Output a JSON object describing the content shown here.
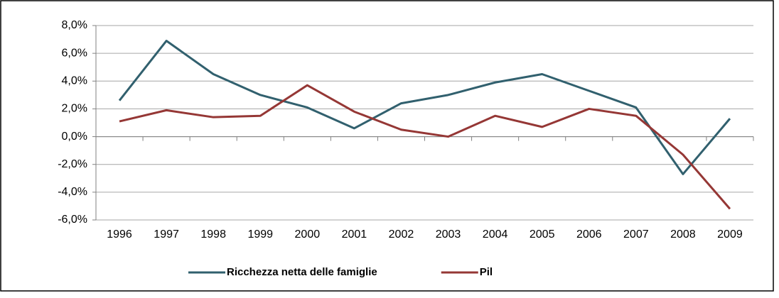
{
  "chart_data": {
    "type": "line",
    "categories": [
      "1996",
      "1997",
      "1998",
      "1999",
      "2000",
      "2001",
      "2002",
      "2003",
      "2004",
      "2005",
      "2006",
      "2007",
      "2008",
      "2009"
    ],
    "series": [
      {
        "name": "Ricchezza netta delle famiglie",
        "color": "#31606e",
        "values": [
          2.6,
          6.9,
          4.5,
          3.0,
          2.1,
          0.6,
          2.4,
          3.0,
          3.9,
          4.5,
          3.3,
          2.1,
          -2.7,
          1.3
        ]
      },
      {
        "name": "Pil",
        "color": "#953735",
        "values": [
          1.1,
          1.9,
          1.4,
          1.5,
          3.7,
          1.8,
          0.5,
          0.0,
          1.5,
          0.7,
          2.0,
          1.5,
          -1.3,
          -5.2
        ]
      }
    ],
    "ylim": [
      -6,
      8
    ],
    "yticks": [
      {
        "value": -6,
        "label": "-6,0%"
      },
      {
        "value": -4,
        "label": "-4,0%"
      },
      {
        "value": -2,
        "label": "-2,0%"
      },
      {
        "value": 0,
        "label": "0,0%"
      },
      {
        "value": 2,
        "label": "2,0%"
      },
      {
        "value": 4,
        "label": "4,0%"
      },
      {
        "value": 6,
        "label": "6,0%"
      },
      {
        "value": 8,
        "label": "8,0%"
      }
    ],
    "grid": true,
    "legend": "bottom"
  }
}
